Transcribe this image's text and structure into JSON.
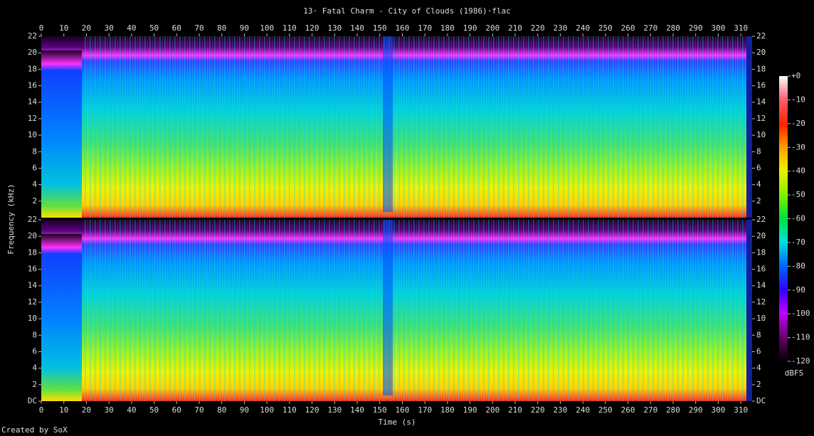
{
  "chart_data": {
    "type": "spectrogram",
    "title": "13· Fatal Charm - City of Clouds (1986)·flac",
    "xlabel": "Time (s)",
    "ylabel": "Frequency (kHz)",
    "xlim": [
      0,
      315
    ],
    "xticks": [
      0,
      10,
      20,
      30,
      40,
      50,
      60,
      70,
      80,
      90,
      100,
      110,
      120,
      130,
      140,
      150,
      160,
      170,
      180,
      190,
      200,
      210,
      220,
      230,
      240,
      250,
      260,
      270,
      280,
      290,
      300,
      310
    ],
    "channels": [
      {
        "ylim": [
          0,
          22
        ],
        "yticks": [
          2,
          4,
          6,
          8,
          10,
          12,
          14,
          16,
          18,
          20,
          22
        ]
      },
      {
        "ylim": [
          0,
          22
        ],
        "yticks": [
          {
            "value": 0,
            "label": "DC"
          },
          2,
          4,
          6,
          8,
          10,
          12,
          14,
          16,
          18,
          20,
          22
        ]
      }
    ],
    "colorbar": {
      "label": "dBFS",
      "zlim": [
        -120,
        0
      ],
      "zticks": [
        {
          "value": 0,
          "label": "+0"
        },
        -10,
        -20,
        -30,
        -40,
        -50,
        -60,
        -70,
        -80,
        -90,
        -100,
        -110,
        -120
      ]
    },
    "footer": "Created by SoX"
  }
}
